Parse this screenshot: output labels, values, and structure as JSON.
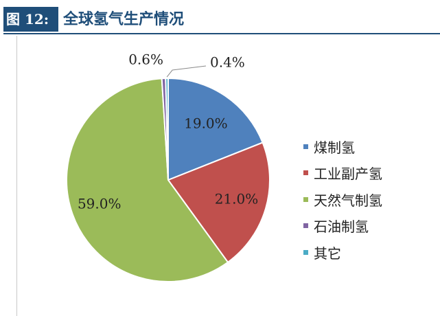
{
  "header": {
    "figure_label": "图 12:",
    "title": "全球氢气生产情况"
  },
  "chart_data": {
    "type": "pie",
    "title": "",
    "legend_position": "right",
    "slices": [
      {
        "name": "煤制氢",
        "value": 19.0,
        "label": "19.0%",
        "color": "#4f81bd"
      },
      {
        "name": "工业副产氢",
        "value": 21.0,
        "label": "21.0%",
        "color": "#c0504d"
      },
      {
        "name": "天然气制氢",
        "value": 59.0,
        "label": "59.0%",
        "color": "#9bbb59"
      },
      {
        "name": "石油制氢",
        "value": 0.6,
        "label": "0.6%",
        "color": "#8064a2"
      },
      {
        "name": "其它",
        "value": 0.4,
        "label": "0.4%",
        "color": "#4bacc6"
      }
    ]
  }
}
